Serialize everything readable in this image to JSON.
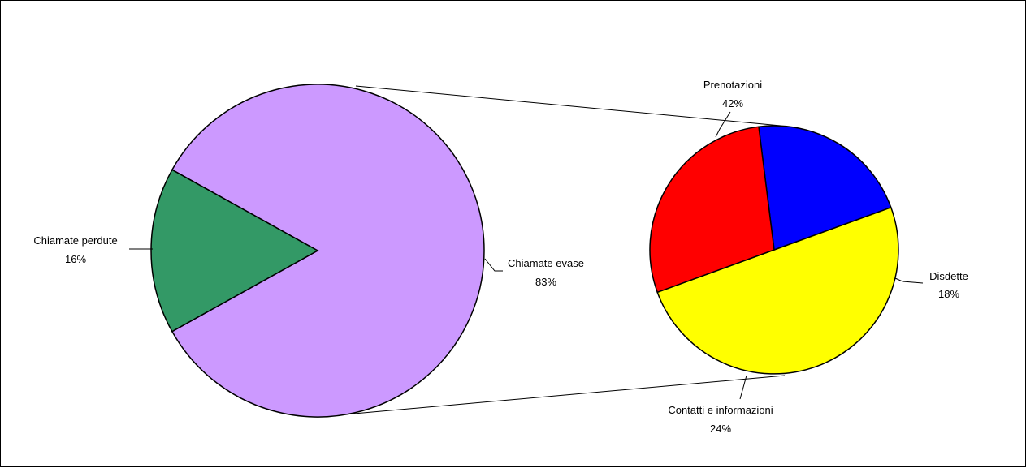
{
  "chart_data": {
    "type": "pie",
    "subtype": "pie-of-pie",
    "title": "",
    "main_pie": {
      "slices": [
        {
          "label": "Chiamate evase",
          "percent_label": "83%",
          "value": 83,
          "color": "#cc99ff",
          "expanded": true
        },
        {
          "label": "Chiamate perdute",
          "percent_label": "16%",
          "value": 16,
          "color": "#339966",
          "expanded": false
        }
      ]
    },
    "secondary_pie": {
      "slices": [
        {
          "label": "Prenotazioni",
          "percent_label": "42%",
          "value": 42,
          "color": "#ffff00"
        },
        {
          "label": "Disdette",
          "percent_label": "18%",
          "value": 18,
          "color": "#0000ff"
        },
        {
          "label": "Contatti e informazioni",
          "percent_label": "24%",
          "value": 24,
          "color": "#ff0000"
        }
      ]
    },
    "legend": "none",
    "outline_color": "#000000",
    "background_color": "#ffffff"
  }
}
